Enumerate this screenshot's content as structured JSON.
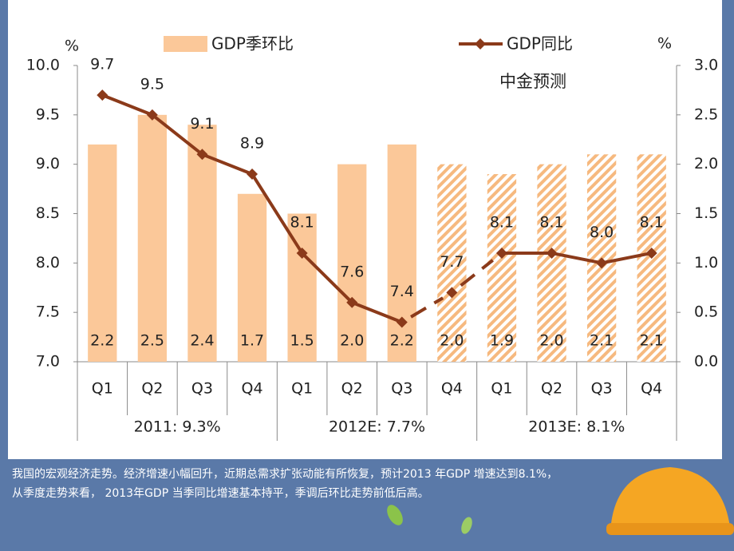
{
  "chart_data": {
    "type": "combo",
    "annotation": "中金预测",
    "y_unit": "%",
    "y2_unit": "%",
    "categories": [
      "Q1",
      "Q2",
      "Q3",
      "Q4",
      "Q1",
      "Q2",
      "Q3",
      "Q4",
      "Q1",
      "Q2",
      "Q3",
      "Q4"
    ],
    "groups": [
      "2011: 9.3%",
      "2012E: 7.7%",
      "2013E: 8.1%"
    ],
    "series": [
      {
        "name": "GDP季环比",
        "type": "bar",
        "axis": "y2",
        "color": "#fbc899",
        "values": [
          2.2,
          2.5,
          2.4,
          1.7,
          1.5,
          2.0,
          2.2,
          2.0,
          1.9,
          2.0,
          2.1,
          2.1
        ],
        "value_labels": [
          "2.2",
          "2.5",
          "2.4",
          "1.7",
          "1.5",
          "2.0",
          "2.2",
          "2.0",
          "1.9",
          "2.0",
          "2.1",
          "2.1"
        ],
        "hatched": [
          false,
          false,
          false,
          false,
          false,
          false,
          false,
          true,
          true,
          true,
          true,
          true
        ]
      },
      {
        "name": "GDP同比",
        "type": "line",
        "axis": "y",
        "color": "#8b3a1a",
        "values": [
          9.7,
          9.5,
          9.1,
          8.9,
          8.1,
          7.6,
          7.4,
          7.7,
          8.1,
          8.1,
          8.0,
          8.1
        ],
        "value_labels": [
          "9.7",
          "9.5",
          "9.1",
          "8.9",
          "8.1",
          "7.6",
          "7.4",
          "7.7",
          "8.1",
          "8.1",
          "8.0",
          "8.1"
        ],
        "dashed_segments": [
          6,
          7
        ]
      }
    ],
    "ylim": [
      7.0,
      10.0
    ],
    "yticks": [
      {
        "value": 7.0,
        "label": "7.0"
      },
      {
        "value": 7.5,
        "label": "7.5"
      },
      {
        "value": 8.0,
        "label": "8.0"
      },
      {
        "value": 8.5,
        "label": "8.5"
      },
      {
        "value": 9.0,
        "label": "9.0"
      },
      {
        "value": 9.5,
        "label": "9.5"
      },
      {
        "value": 10.0,
        "label": "10.0"
      }
    ],
    "y2lim": [
      0.0,
      3.0
    ],
    "y2ticks": [
      {
        "value": 0.0,
        "label": "0.0"
      },
      {
        "value": 0.5,
        "label": "0.5"
      },
      {
        "value": 1.0,
        "label": "1.0"
      },
      {
        "value": 1.5,
        "label": "1.5"
      },
      {
        "value": 2.0,
        "label": "2.0"
      },
      {
        "value": 2.5,
        "label": "2.5"
      },
      {
        "value": 3.0,
        "label": "3.0"
      }
    ],
    "grid": false,
    "caption": [
      "我国的宏观经济走势。经济增速小幅回升，近期总需求扩张动能有所恢复，预计2013 年GDP 增速达到8.1%，",
      "从季度走势来看， 2013年GDP 当季同比增速基本持平，季调后环比走势前低后高。"
    ]
  }
}
